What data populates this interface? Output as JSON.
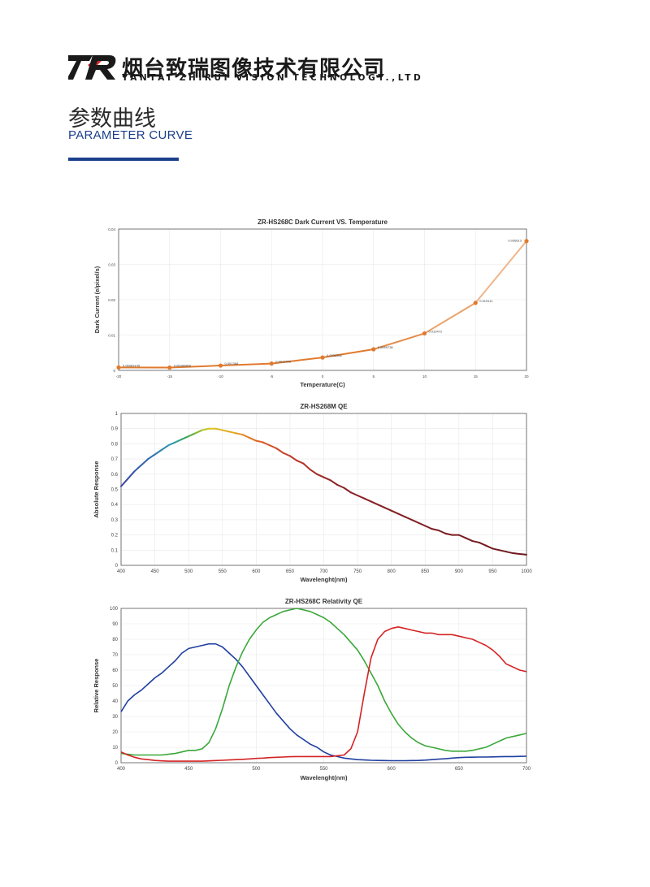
{
  "header": {
    "company_cn": "烟台致瑞图像技术有限公司",
    "company_en": "YANTAI ZHIRUI VISION TECHNOLOGY.,LTD",
    "brand_color": "#1a1a1a",
    "accent_color": "#d42b2b"
  },
  "section": {
    "title_cn": "参数曲线",
    "title_en": "PARAMETER CURVE",
    "rule_color": "#1c3f8c"
  },
  "chart_data": [
    {
      "type": "line",
      "title": "ZR-HS268C Dark Current VS. Temperature",
      "xlabel": "Temperature(C)",
      "ylabel": "Dark Current (e/pixel/s)",
      "xlim": [
        -20,
        20
      ],
      "ylim": [
        0,
        0.04
      ],
      "x_ticks": [
        "-20",
        "-15",
        "-10",
        "-5",
        "0",
        "5",
        "10",
        "15",
        "20"
      ],
      "y_ticks": [
        "0",
        "0.01",
        "0.02",
        "0.03",
        "0.04"
      ],
      "grid": true,
      "x": [
        -20,
        -15,
        -10,
        -5,
        0,
        5,
        10,
        15,
        20
      ],
      "values": [
        0.00083145,
        0.00080859,
        0.001368,
        0.0019325,
        0.0036552,
        0.0059736,
        0.010472,
        0.019111,
        0.036613
      ],
      "point_labels": [
        "0.00083145",
        "0.00080859",
        "0.001368",
        "0.0019325",
        "0.0036552",
        "0.0059736",
        "0.010472",
        "0.019111",
        "0.036613"
      ],
      "color": "#e07a2e"
    },
    {
      "type": "line",
      "title": "ZR-HS268M QE",
      "xlabel": "Wavelenght(nm)",
      "ylabel": "Absolute Response",
      "xlim": [
        400,
        1000
      ],
      "ylim": [
        0,
        1
      ],
      "x_ticks": [
        "400",
        "450",
        "500",
        "550",
        "600",
        "650",
        "700",
        "750",
        "800",
        "850",
        "900",
        "950",
        "1000"
      ],
      "y_ticks": [
        "0",
        "0.1",
        "0.2",
        "0.3",
        "0.4",
        "0.5",
        "0.6",
        "0.7",
        "0.8",
        "0.9",
        "1"
      ],
      "grid": true,
      "x": [
        400,
        410,
        420,
        430,
        440,
        450,
        460,
        470,
        480,
        490,
        500,
        510,
        520,
        530,
        540,
        550,
        560,
        570,
        580,
        590,
        600,
        610,
        620,
        630,
        640,
        650,
        660,
        670,
        680,
        690,
        700,
        710,
        720,
        730,
        740,
        750,
        760,
        770,
        780,
        790,
        800,
        810,
        820,
        830,
        840,
        850,
        860,
        870,
        880,
        890,
        900,
        910,
        920,
        930,
        940,
        950,
        960,
        970,
        980,
        990,
        1000
      ],
      "values": [
        0.52,
        0.57,
        0.62,
        0.66,
        0.7,
        0.73,
        0.76,
        0.79,
        0.81,
        0.83,
        0.85,
        0.87,
        0.89,
        0.9,
        0.9,
        0.89,
        0.88,
        0.87,
        0.86,
        0.84,
        0.82,
        0.81,
        0.79,
        0.77,
        0.74,
        0.72,
        0.69,
        0.67,
        0.63,
        0.6,
        0.58,
        0.56,
        0.53,
        0.51,
        0.48,
        0.46,
        0.44,
        0.42,
        0.4,
        0.38,
        0.36,
        0.34,
        0.32,
        0.3,
        0.28,
        0.26,
        0.24,
        0.23,
        0.21,
        0.2,
        0.2,
        0.18,
        0.16,
        0.15,
        0.13,
        0.11,
        0.1,
        0.09,
        0.08,
        0.075,
        0.07
      ]
    },
    {
      "type": "line",
      "title": "ZR-HS268C Relativity QE",
      "xlabel": "Wavelenght(nm)",
      "ylabel": "Relative Response",
      "xlim": [
        400,
        700
      ],
      "ylim": [
        0,
        100
      ],
      "x_ticks": [
        "400",
        "450",
        "500",
        "550",
        "600",
        "650",
        "700"
      ],
      "y_ticks": [
        "0",
        "10",
        "20",
        "30",
        "40",
        "50",
        "60",
        "70",
        "80",
        "90",
        "100"
      ],
      "grid": true,
      "x": [
        400,
        405,
        410,
        415,
        420,
        425,
        430,
        435,
        440,
        445,
        450,
        455,
        460,
        465,
        470,
        475,
        480,
        485,
        490,
        495,
        500,
        505,
        510,
        515,
        520,
        525,
        530,
        535,
        540,
        545,
        550,
        555,
        560,
        565,
        570,
        575,
        580,
        585,
        590,
        595,
        600,
        605,
        610,
        615,
        620,
        625,
        630,
        635,
        640,
        645,
        650,
        655,
        660,
        665,
        670,
        675,
        680,
        685,
        690,
        695,
        700
      ],
      "series": [
        {
          "color": "#1f3fa0",
          "values": [
            33,
            40,
            44,
            47,
            51,
            55,
            58,
            62,
            66,
            71,
            74,
            75,
            76,
            77,
            77,
            75,
            71,
            67,
            62,
            56,
            50,
            44,
            38,
            32,
            27,
            22,
            18,
            15,
            12,
            10,
            7,
            5,
            4,
            3,
            2.5,
            2,
            1.8,
            1.6,
            1.5,
            1.4,
            1.3,
            1.3,
            1.3,
            1.4,
            1.5,
            1.7,
            2,
            2.3,
            2.6,
            3,
            3.3,
            3.5,
            3.6,
            3.7,
            3.7,
            3.8,
            3.9,
            4,
            4,
            4.1,
            4.2
          ]
        },
        {
          "color": "#3aa83a",
          "values": [
            6,
            5.5,
            5,
            5,
            5,
            5,
            5,
            5.5,
            6,
            7,
            8,
            8,
            9,
            13,
            22,
            35,
            50,
            62,
            72,
            80,
            86,
            91,
            94,
            96,
            98,
            99,
            100,
            99,
            98,
            96,
            94,
            91,
            87,
            83,
            78,
            73,
            66,
            58,
            50,
            40,
            32,
            25,
            20,
            16,
            13,
            11,
            10,
            9,
            8,
            7.5,
            7.5,
            7.5,
            8,
            9,
            10,
            12,
            14,
            16,
            17,
            18,
            19
          ]
        },
        {
          "color": "#d42323",
          "values": [
            7,
            5,
            3.5,
            2.5,
            2,
            1.5,
            1.2,
            1,
            1,
            1,
            1,
            1,
            1,
            1.2,
            1.4,
            1.6,
            1.8,
            2,
            2.2,
            2.5,
            2.8,
            3,
            3.3,
            3.5,
            3.7,
            3.9,
            4,
            4,
            4,
            4,
            4,
            4,
            4.5,
            5,
            9,
            20,
            45,
            68,
            80,
            85,
            87,
            88,
            87,
            86,
            85,
            84,
            84,
            83,
            83,
            83,
            82,
            81,
            80,
            78,
            76,
            73,
            69,
            64,
            62,
            60,
            59
          ]
        }
      ]
    }
  ]
}
